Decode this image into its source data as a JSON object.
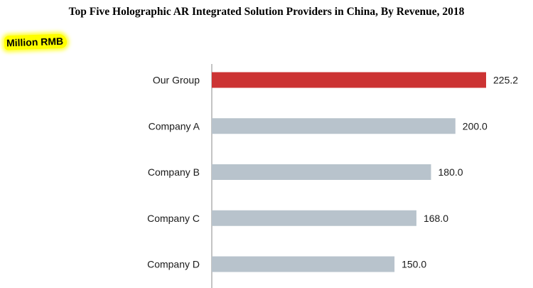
{
  "chart_data": {
    "type": "bar",
    "orientation": "horizontal",
    "title": "Top Five Holographic AR Integrated Solution Providers in China, By Revenue, 2018",
    "unit_label": "Million RMB",
    "categories": [
      "Our Group",
      "Company A",
      "Company B",
      "Company C",
      "Company D"
    ],
    "values": [
      225.2,
      200.0,
      180.0,
      168.0,
      150.0
    ],
    "value_labels": [
      "225.2",
      "200.0",
      "180.0",
      "168.0",
      "150.0"
    ],
    "xlim": [
      0,
      230
    ],
    "grid": false,
    "legend": "none",
    "colors": {
      "highlight": "#cc3333",
      "bar": "#b8c3cc",
      "axis": "#8a8a8a",
      "unit_highlight": "#ffff00"
    }
  }
}
